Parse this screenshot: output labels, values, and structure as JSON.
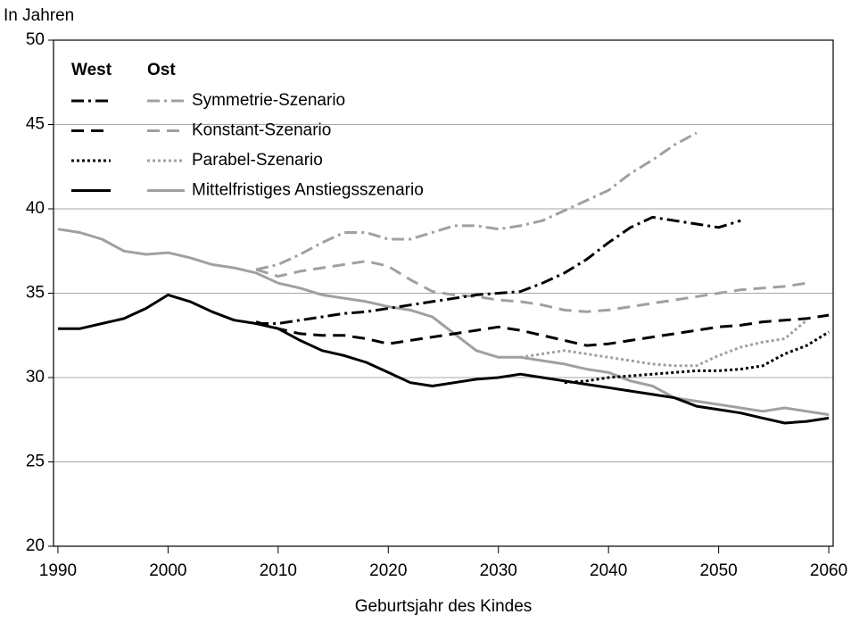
{
  "chart_data": {
    "type": "line",
    "y_label": "In Jahren",
    "x_label": "Geburtsjahr des Kindes",
    "xlim": [
      1989.6,
      2060.4
    ],
    "xticks": [
      1990,
      2000,
      2010,
      2020,
      2030,
      2040,
      2050,
      2060
    ],
    "ylim": [
      20,
      50
    ],
    "yticks": [
      20,
      25,
      30,
      35,
      40,
      45,
      50
    ],
    "grid": true,
    "legend_headers": [
      "West",
      "Ost"
    ],
    "x": [
      1990,
      1992,
      1994,
      1996,
      1998,
      2000,
      2002,
      2004,
      2006,
      2008,
      2010,
      2012,
      2014,
      2016,
      2018,
      2020,
      2022,
      2024,
      2026,
      2028,
      2030,
      2032,
      2034,
      2036,
      2038,
      2040,
      2042,
      2044,
      2046,
      2048,
      2050,
      2052,
      2054,
      2056,
      2058,
      2060
    ],
    "series": [
      {
        "name": "Symmetrie-Szenario",
        "dash": "dash-dot",
        "west": {
          "color": "#000000",
          "values": [
            null,
            null,
            null,
            null,
            null,
            null,
            null,
            null,
            null,
            33.2,
            33.2,
            33.4,
            33.6,
            33.8,
            33.9,
            34.1,
            34.3,
            34.5,
            34.7,
            34.9,
            35.0,
            35.1,
            35.6,
            36.2,
            37.0,
            38.0,
            38.9,
            39.5,
            39.3,
            39.1,
            38.9,
            39.3,
            null,
            null,
            null,
            null
          ]
        },
        "ost": {
          "color": "#a0a0a0",
          "values": [
            null,
            null,
            null,
            null,
            null,
            null,
            null,
            null,
            null,
            36.4,
            36.7,
            37.3,
            38.0,
            38.6,
            38.6,
            38.2,
            38.2,
            38.6,
            39.0,
            39.0,
            38.8,
            39.0,
            39.3,
            39.9,
            40.5,
            41.1,
            42.1,
            42.9,
            43.8,
            44.5,
            null,
            null,
            null,
            null,
            null,
            null
          ]
        }
      },
      {
        "name": "Konstant-Szenario",
        "dash": "dash",
        "west": {
          "color": "#000000",
          "values": [
            null,
            null,
            null,
            null,
            null,
            null,
            null,
            null,
            null,
            33.3,
            32.9,
            32.6,
            32.5,
            32.5,
            32.3,
            32.0,
            32.2,
            32.4,
            32.6,
            32.8,
            33.0,
            32.8,
            32.5,
            32.2,
            31.9,
            32.0,
            32.2,
            32.4,
            32.6,
            32.8,
            33.0,
            33.1,
            33.3,
            33.4,
            33.5,
            33.7
          ]
        },
        "ost": {
          "color": "#a0a0a0",
          "values": [
            null,
            null,
            null,
            null,
            null,
            null,
            null,
            null,
            null,
            36.4,
            36.0,
            36.3,
            36.5,
            36.7,
            36.9,
            36.6,
            35.8,
            35.1,
            34.9,
            34.8,
            34.6,
            34.5,
            34.3,
            34.0,
            33.9,
            34.0,
            34.2,
            34.4,
            34.6,
            34.8,
            35.0,
            35.2,
            35.3,
            35.4,
            35.6,
            null
          ]
        }
      },
      {
        "name": "Parabel-Szenario",
        "dash": "dot",
        "west": {
          "color": "#000000",
          "values": [
            null,
            null,
            null,
            null,
            null,
            null,
            null,
            null,
            null,
            null,
            null,
            null,
            null,
            null,
            null,
            null,
            null,
            null,
            null,
            null,
            null,
            null,
            null,
            29.7,
            29.8,
            30.0,
            30.1,
            30.2,
            30.3,
            30.4,
            30.4,
            30.5,
            30.7,
            31.4,
            31.9,
            32.7
          ]
        },
        "ost": {
          "color": "#a0a0a0",
          "values": [
            null,
            null,
            null,
            null,
            null,
            null,
            null,
            null,
            null,
            null,
            null,
            null,
            null,
            null,
            null,
            null,
            null,
            null,
            null,
            null,
            null,
            31.2,
            31.4,
            31.6,
            31.4,
            31.2,
            31.0,
            30.8,
            30.7,
            30.7,
            31.3,
            31.8,
            32.1,
            32.3,
            33.4,
            null
          ]
        }
      },
      {
        "name": "Mittelfristiges Anstiegsszenario",
        "dash": "solid",
        "west": {
          "color": "#000000",
          "values": [
            32.9,
            32.9,
            33.2,
            33.5,
            34.1,
            34.9,
            34.5,
            33.9,
            33.4,
            33.2,
            32.9,
            32.2,
            31.6,
            31.3,
            30.9,
            30.3,
            29.7,
            29.5,
            29.7,
            29.9,
            30.0,
            30.2,
            30.0,
            29.8,
            29.6,
            29.4,
            29.2,
            29.0,
            28.8,
            28.3,
            28.1,
            27.9,
            27.6,
            27.3,
            27.4,
            27.6
          ]
        },
        "ost": {
          "color": "#a0a0a0",
          "values": [
            38.8,
            38.6,
            38.2,
            37.5,
            37.3,
            37.4,
            37.1,
            36.7,
            36.5,
            36.2,
            35.6,
            35.3,
            34.9,
            34.7,
            34.5,
            34.2,
            34.0,
            33.6,
            32.6,
            31.6,
            31.2,
            31.2,
            31.0,
            30.8,
            30.5,
            30.3,
            29.8,
            29.5,
            28.8,
            28.6,
            28.4,
            28.2,
            28.0,
            28.2,
            28.0,
            27.8
          ]
        }
      }
    ]
  }
}
